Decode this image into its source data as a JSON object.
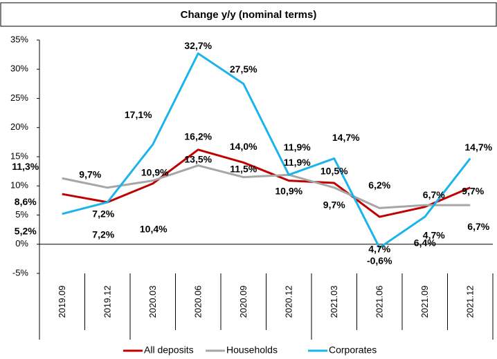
{
  "chart_data": {
    "type": "line",
    "title": "Change y/y (nominal terms)",
    "categories": [
      "2019.09",
      "2019.12",
      "2020.03",
      "2020.06",
      "2020.09",
      "2020.12",
      "2021.03",
      "2021.06",
      "2021.09",
      "2021.12"
    ],
    "series": [
      {
        "name": "All deposits",
        "color": "#c00000",
        "label_color": "#c00000",
        "values": [
          8.6,
          7.2,
          10.4,
          16.2,
          14.0,
          10.9,
          10.5,
          4.7,
          6.4,
          9.7
        ],
        "value_labels": [
          "8,6%",
          "7,2%",
          "10,4%",
          "16,2%",
          "14,0%",
          "10,9%",
          "10,5%",
          "4,7%",
          "6,4%",
          "9,7%"
        ]
      },
      {
        "name": "Households",
        "color": "#a6a6a6",
        "label_color": "#7f7f7f",
        "values": [
          11.3,
          9.7,
          10.9,
          13.5,
          11.5,
          11.9,
          9.7,
          6.2,
          6.7,
          6.7
        ],
        "value_labels": [
          "11,3%",
          "9,7%",
          "10,9%",
          "13,5%",
          "11,5%",
          "11,9%",
          "9,7%",
          "6,2%",
          "6,7%",
          "6,7%"
        ]
      },
      {
        "name": "Corporates",
        "color": "#1ab4ea",
        "label_color": "#1f84a8",
        "values": [
          5.2,
          7.2,
          17.1,
          32.7,
          27.5,
          11.9,
          14.7,
          -0.6,
          4.7,
          14.7
        ],
        "value_labels": [
          "5,2%",
          "7,2%",
          "17,1%",
          "32,7%",
          "27,5%",
          "11,9%",
          "14,7%",
          "-0,6%",
          "4,7%",
          "14,7%"
        ]
      }
    ],
    "ylim": [
      -5,
      35
    ],
    "yticks": [
      {
        "value": -5,
        "label": "-5%"
      },
      {
        "value": 0,
        "label": "0%"
      },
      {
        "value": 5,
        "label": "5%"
      },
      {
        "value": 10,
        "label": "10%"
      },
      {
        "value": 15,
        "label": "15%"
      },
      {
        "value": 20,
        "label": "20%"
      },
      {
        "value": 25,
        "label": "25%"
      },
      {
        "value": 30,
        "label": "30%"
      },
      {
        "value": 35,
        "label": "35%"
      }
    ],
    "grid": false,
    "legend": "bottom"
  }
}
